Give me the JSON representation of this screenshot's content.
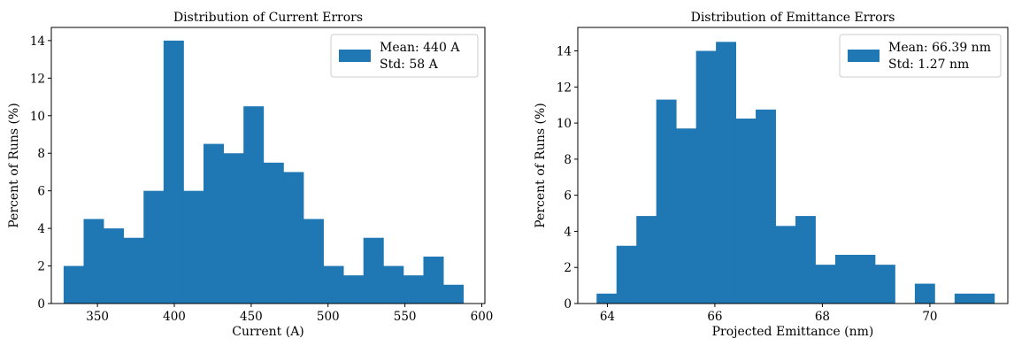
{
  "chart_data": [
    {
      "type": "bar",
      "title": "Distribution of Current Errors",
      "xlabel": "Current (A)",
      "ylabel": "Percent of Runs (%)",
      "xlim": [
        320,
        602
      ],
      "ylim": [
        0,
        14.7
      ],
      "xticks": [
        350,
        400,
        450,
        500,
        550,
        600
      ],
      "yticks": [
        0,
        2,
        4,
        6,
        8,
        10,
        12,
        14
      ],
      "bin_edges": [
        328,
        341,
        354,
        367,
        380,
        393,
        406,
        419,
        432,
        445,
        458,
        471,
        484,
        497,
        510,
        523,
        536,
        549,
        562,
        575,
        588
      ],
      "values": [
        2,
        4.5,
        4,
        3.5,
        6,
        14,
        6,
        8.5,
        8,
        10.5,
        7.5,
        7,
        4.5,
        2,
        1.5,
        3.5,
        2,
        1.5,
        2.5,
        1
      ],
      "color": "#1f77b4",
      "legend": {
        "position": "top-right",
        "lines": [
          "Mean: 440 A",
          "Std: 58 A"
        ]
      }
    },
    {
      "type": "bar",
      "title": "Distribution of Emittance Errors",
      "xlabel": "Projected Emittance (nm)",
      "ylabel": "Percent of Runs (%)",
      "xlim": [
        63.45,
        71.45
      ],
      "ylim": [
        0,
        15.3
      ],
      "xticks": [
        64,
        66,
        68,
        70
      ],
      "yticks": [
        0,
        2,
        4,
        6,
        8,
        10,
        12,
        14
      ],
      "bin_edges": [
        63.8,
        64.17,
        64.54,
        64.91,
        65.28,
        65.65,
        66.02,
        66.39,
        66.76,
        67.13,
        67.5,
        67.87,
        68.24,
        68.61,
        68.98,
        69.35,
        69.72,
        70.09,
        70.46,
        70.83,
        71.2
      ],
      "values": [
        0.55,
        3.2,
        4.85,
        11.3,
        9.7,
        14,
        14.5,
        10.25,
        10.75,
        4.3,
        4.85,
        2.15,
        2.7,
        2.7,
        2.15,
        0,
        1.1,
        0,
        0.55,
        0.55
      ],
      "color": "#1f77b4",
      "legend": {
        "position": "top-right",
        "lines": [
          "Mean: 66.39 nm",
          "Std: 1.27 nm"
        ]
      }
    }
  ]
}
